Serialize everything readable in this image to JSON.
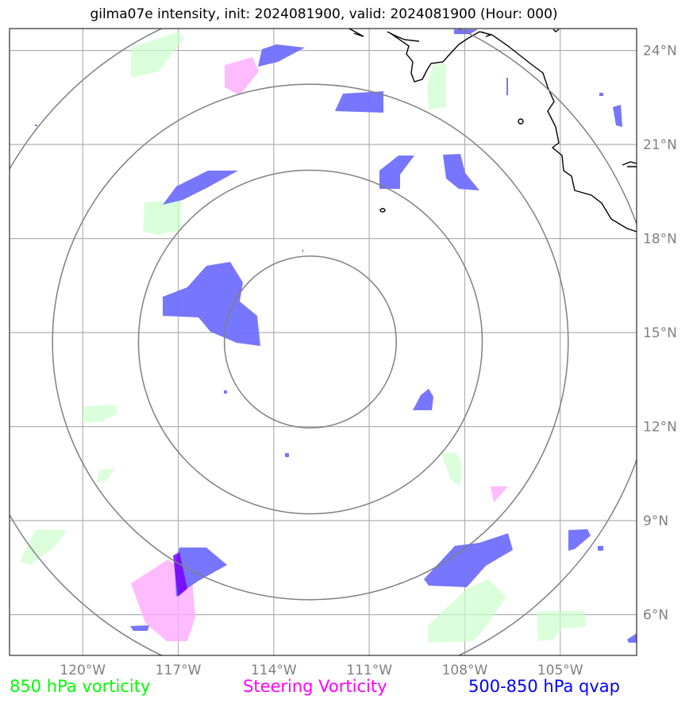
{
  "title": "gilma07e intensity, init: 2024081900, valid: 2024081900 (Hour: 000)",
  "map": {
    "projection": "lat-lon",
    "lon_range": [
      -122.3,
      -102.6
    ],
    "lat_range": [
      4.7,
      24.7
    ],
    "lon_ticks": [
      {
        "value": -120,
        "label": "120°W"
      },
      {
        "value": -117,
        "label": "117°W"
      },
      {
        "value": -114,
        "label": "114°W"
      },
      {
        "value": -111,
        "label": "111°W"
      },
      {
        "value": -108,
        "label": "108°W"
      },
      {
        "value": -105,
        "label": "105°W"
      }
    ],
    "lat_ticks": [
      {
        "value": 6,
        "label": "6°N"
      },
      {
        "value": 9,
        "label": "9°N"
      },
      {
        "value": 12,
        "label": "12°N"
      },
      {
        "value": 15,
        "label": "15°N"
      },
      {
        "value": 18,
        "label": "18°N"
      },
      {
        "value": 21,
        "label": "21°N"
      },
      {
        "value": 24,
        "label": "24°N"
      }
    ],
    "gridlines": true,
    "storm_center": {
      "lon": -112.85,
      "lat": 14.7
    },
    "range_rings_deg": [
      2.7,
      5.4,
      8.1,
      10.9
    ],
    "colors": {
      "vorticity_850": "#00ff00",
      "steering_vorticity": "#ff00ff",
      "qvap_500_850": "#0000ff",
      "coastline": "#000000",
      "ring": "#808080",
      "grid": "#b0b0b0"
    }
  },
  "legend": [
    {
      "label": "850 hPa vorticity",
      "color": "#00ff00"
    },
    {
      "label": "Steering Vorticity",
      "color": "#ff00ff"
    },
    {
      "label": "500-850 hPa qvap",
      "color": "#0000ff"
    }
  ]
}
